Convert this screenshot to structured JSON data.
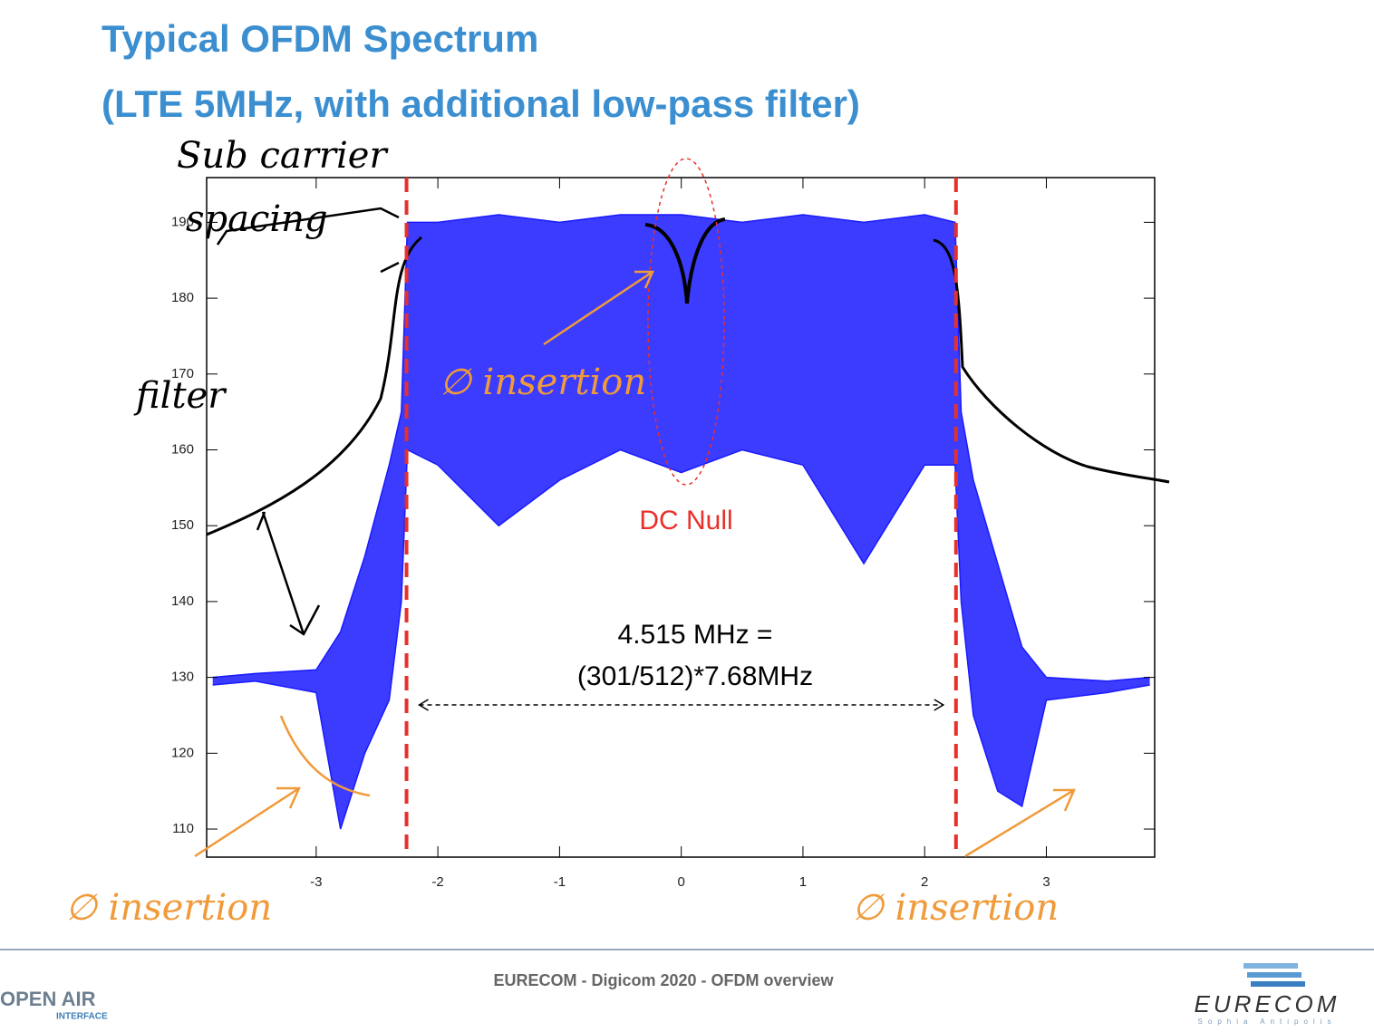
{
  "header": {
    "title": [
      "Typical OFDM Spectrum",
      "(LTE 5MHz, with additional low-pass filter)"
    ]
  },
  "chart_data": {
    "type": "area-range",
    "x": [
      -3.85,
      -3.5,
      -3.0,
      -2.8,
      -2.6,
      -2.4,
      -2.3,
      -2.25,
      -2.0,
      -1.5,
      -1.0,
      -0.5,
      0,
      0.5,
      1.0,
      1.5,
      2.0,
      2.25,
      2.3,
      2.4,
      2.6,
      2.8,
      3.0,
      3.5,
      3.85
    ],
    "series": [
      {
        "color": "#1a1aff",
        "values": [
          130,
          130.5,
          131,
          136,
          146,
          158,
          165,
          190,
          190,
          191,
          190,
          191,
          191,
          190,
          191,
          190,
          191,
          190,
          165,
          156,
          145,
          134,
          130,
          129.5,
          130
        ]
      },
      {
        "color": "#1a1aff",
        "values": [
          129,
          129.5,
          128,
          110,
          120,
          127,
          140,
          160,
          158,
          150,
          156,
          160,
          157,
          160,
          158,
          145,
          158,
          158,
          140,
          125,
          115,
          113,
          127,
          128,
          129
        ]
      }
    ],
    "xlim": [
      -3.9,
      3.89
    ],
    "ylim": [
      106.3,
      195.9
    ],
    "xticks": [
      -3,
      -2,
      -1,
      0,
      1,
      2,
      3
    ],
    "yticks": [
      110,
      120,
      130,
      140,
      150,
      160,
      170,
      180,
      190
    ],
    "vlines": [
      -2.2575,
      2.2575
    ],
    "vline_color": "#e8302a",
    "annotations": [
      "DC Null",
      "4.515 MHz =",
      "(301/512)*7.68MHz"
    ],
    "handwriting": [
      "Sub carrier",
      "spacing",
      "filter",
      "∅ insertion",
      "∅ insertion",
      "∅ insertion"
    ]
  },
  "footer": {
    "text": "EURECOM - Digicom 2020 - OFDM overview",
    "logo_left": [
      "OPEN AIR",
      "INTERFACE"
    ],
    "logo_right": [
      "EURECOM",
      "Sophia Antipolis"
    ]
  }
}
